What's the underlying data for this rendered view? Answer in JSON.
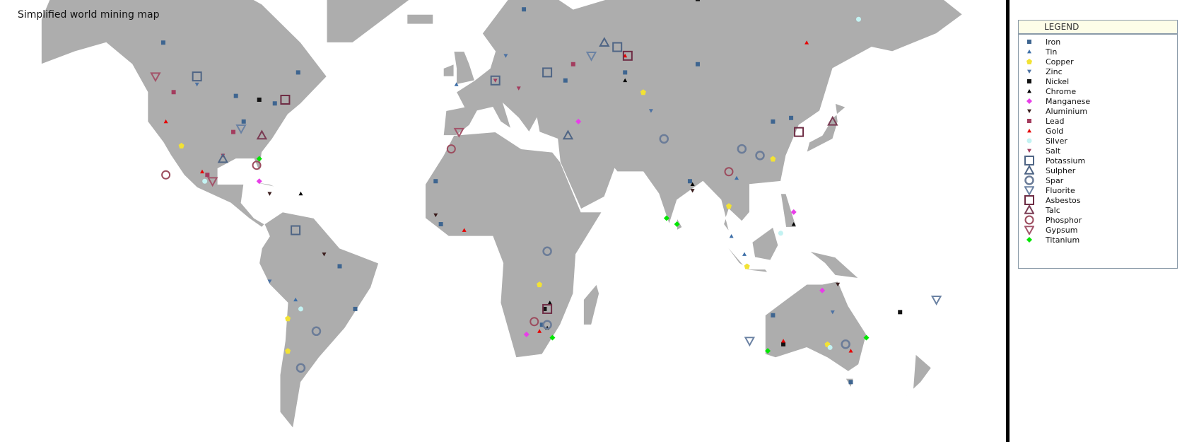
{
  "title": "Simplified world mining map",
  "legend": {
    "header": "LEGEND",
    "items": [
      {
        "label": "Iron",
        "shape": "square-small",
        "color": "#3e6590"
      },
      {
        "label": "Tin",
        "shape": "triangle-small",
        "color": "#3e6fa8"
      },
      {
        "label": "Copper",
        "shape": "pentagon",
        "color": "#f2e234"
      },
      {
        "label": "Zinc",
        "shape": "triangle-down-small",
        "color": "#4d72a3"
      },
      {
        "label": "Nickel",
        "shape": "square-small",
        "color": "#111111"
      },
      {
        "label": "Chrome",
        "shape": "triangle-small",
        "color": "#000000"
      },
      {
        "label": "Manganese",
        "shape": "diamond",
        "color": "#e83ee8"
      },
      {
        "label": "Aluminium",
        "shape": "triangle-down-small",
        "color": "#3a1c1c"
      },
      {
        "label": "Lead",
        "shape": "square-small",
        "color": "#a33c5e"
      },
      {
        "label": "Gold",
        "shape": "triangle-small",
        "color": "#e60000"
      },
      {
        "label": "Silver",
        "shape": "circle",
        "color": "#c3f2f2"
      },
      {
        "label": "Salt",
        "shape": "triangle-down-small",
        "color": "#a33c5e"
      },
      {
        "label": "Potassium",
        "shape": "square-outline",
        "color": "#4f6585"
      },
      {
        "label": "Sulpher",
        "shape": "triangle-outline",
        "color": "#4f6585"
      },
      {
        "label": "Spar",
        "shape": "circle-outline",
        "color": "#6b7c98"
      },
      {
        "label": "Fluorite",
        "shape": "triangle-down-outline",
        "color": "#6b82a3"
      },
      {
        "label": "Asbestos",
        "shape": "square-outline",
        "color": "#6e2c44"
      },
      {
        "label": "Talc",
        "shape": "triangle-outline",
        "color": "#7a3c54"
      },
      {
        "label": "Phosphor",
        "shape": "circle-outline",
        "color": "#9c4c5e"
      },
      {
        "label": "Gypsum",
        "shape": "triangle-down-outline",
        "color": "#a3546a"
      },
      {
        "label": "Titanium",
        "shape": "diamond",
        "color": "#00e600"
      }
    ]
  },
  "colors": {
    "land": "#adadad",
    "border": "#ffffff",
    "ocean": "#ffffff"
  },
  "markers": [
    {
      "type": "Iron",
      "lon": -66,
      "lat": 53
    },
    {
      "type": "Iron",
      "lon": -90,
      "lat": 47
    },
    {
      "type": "Iron",
      "lon": -118,
      "lat": 60
    },
    {
      "type": "Iron",
      "lon": -75,
      "lat": 45
    },
    {
      "type": "Iron",
      "lon": -87,
      "lat": 40
    },
    {
      "type": "Iron",
      "lon": 21,
      "lat": 67
    },
    {
      "type": "Iron",
      "lon": 37,
      "lat": 51
    },
    {
      "type": "Iron",
      "lon": 60,
      "lat": 53
    },
    {
      "type": "Iron",
      "lon": 88,
      "lat": 55
    },
    {
      "type": "Iron",
      "lon": 117,
      "lat": 40
    },
    {
      "type": "Iron",
      "lon": 124,
      "lat": 41
    },
    {
      "type": "Iron",
      "lon": 85,
      "lat": 22
    },
    {
      "type": "Iron",
      "lon": 117,
      "lat": -22
    },
    {
      "type": "Iron",
      "lon": -44,
      "lat": -20
    },
    {
      "type": "Iron",
      "lon": -50,
      "lat": -6
    },
    {
      "type": "Iron",
      "lon": 28,
      "lat": -25
    },
    {
      "type": "Iron",
      "lon": -11,
      "lat": 8
    },
    {
      "type": "Iron",
      "lon": -13,
      "lat": 22
    },
    {
      "type": "Iron",
      "lon": 147,
      "lat": -42
    },
    {
      "type": "Tin",
      "lon": -67,
      "lat": -17
    },
    {
      "type": "Tin",
      "lon": 101,
      "lat": 4
    },
    {
      "type": "Tin",
      "lon": 106,
      "lat": -2
    },
    {
      "type": "Tin",
      "lon": 103,
      "lat": 23
    },
    {
      "type": "Tin",
      "lon": -5,
      "lat": 50
    },
    {
      "type": "Copper",
      "lon": -70,
      "lat": -23
    },
    {
      "type": "Copper",
      "lon": -70,
      "lat": -33
    },
    {
      "type": "Copper",
      "lon": 27,
      "lat": -12
    },
    {
      "type": "Copper",
      "lon": -111,
      "lat": 33
    },
    {
      "type": "Copper",
      "lon": 138,
      "lat": -31
    },
    {
      "type": "Copper",
      "lon": 67,
      "lat": 48
    },
    {
      "type": "Copper",
      "lon": 117,
      "lat": 29
    },
    {
      "type": "Copper",
      "lon": 100,
      "lat": 14
    },
    {
      "type": "Copper",
      "lon": 107,
      "lat": -6
    },
    {
      "type": "Zinc",
      "lon": -105,
      "lat": 50
    },
    {
      "type": "Zinc",
      "lon": 140,
      "lat": -21
    },
    {
      "type": "Zinc",
      "lon": -77,
      "lat": -11
    },
    {
      "type": "Zinc",
      "lon": 14,
      "lat": 57
    },
    {
      "type": "Zinc",
      "lon": 70,
      "lat": 43
    },
    {
      "type": "Nickel",
      "lon": 88,
      "lat": 69
    },
    {
      "type": "Nickel",
      "lon": -81,
      "lat": 46
    },
    {
      "type": "Nickel",
      "lon": 121,
      "lat": -31
    },
    {
      "type": "Nickel",
      "lon": 166,
      "lat": -21
    },
    {
      "type": "Nickel",
      "lon": 29,
      "lat": -20
    },
    {
      "type": "Chrome",
      "lon": 30,
      "lat": -26
    },
    {
      "type": "Chrome",
      "lon": 31,
      "lat": -18
    },
    {
      "type": "Chrome",
      "lon": 60,
      "lat": 51
    },
    {
      "type": "Chrome",
      "lon": 86,
      "lat": 21
    },
    {
      "type": "Chrome",
      "lon": -65,
      "lat": 18
    },
    {
      "type": "Chrome",
      "lon": 125,
      "lat": 8
    },
    {
      "type": "Manganese",
      "lon": 22,
      "lat": -28
    },
    {
      "type": "Manganese",
      "lon": 136,
      "lat": -14
    },
    {
      "type": "Manganese",
      "lon": -81,
      "lat": 22
    },
    {
      "type": "Manganese",
      "lon": 125,
      "lat": 12
    },
    {
      "type": "Manganese",
      "lon": 42,
      "lat": 40
    },
    {
      "type": "Aluminium",
      "lon": -13,
      "lat": 11
    },
    {
      "type": "Aluminium",
      "lon": 142,
      "lat": -12
    },
    {
      "type": "Aluminium",
      "lon": -56,
      "lat": -2
    },
    {
      "type": "Aluminium",
      "lon": 86,
      "lat": 19
    },
    {
      "type": "Aluminium",
      "lon": -77,
      "lat": 18
    },
    {
      "type": "Lead",
      "lon": -91,
      "lat": 37
    },
    {
      "type": "Lead",
      "lon": -114,
      "lat": 48
    },
    {
      "type": "Lead",
      "lon": 40,
      "lat": 55
    },
    {
      "type": "Lead",
      "lon": -101,
      "lat": 24
    },
    {
      "type": "Gold",
      "lon": 27,
      "lat": -27
    },
    {
      "type": "Gold",
      "lon": 121,
      "lat": -30
    },
    {
      "type": "Gold",
      "lon": -117,
      "lat": 40
    },
    {
      "type": "Gold",
      "lon": -103,
      "lat": 25
    },
    {
      "type": "Gold",
      "lon": 60,
      "lat": 57
    },
    {
      "type": "Gold",
      "lon": 130,
      "lat": 60
    },
    {
      "type": "Gold",
      "lon": -2,
      "lat": 6
    },
    {
      "type": "Gold",
      "lon": 147,
      "lat": -33
    },
    {
      "type": "Silver",
      "lon": -102,
      "lat": 22
    },
    {
      "type": "Silver",
      "lon": -65,
      "lat": -20
    },
    {
      "type": "Silver",
      "lon": 139,
      "lat": -32
    },
    {
      "type": "Silver",
      "lon": 150,
      "lat": 65
    },
    {
      "type": "Silver",
      "lon": 120,
      "lat": 5
    },
    {
      "type": "Salt",
      "lon": -95,
      "lat": 30
    },
    {
      "type": "Salt",
      "lon": 10,
      "lat": 51
    },
    {
      "type": "Salt",
      "lon": 19,
      "lat": 49
    },
    {
      "type": "Potassium",
      "lon": -105,
      "lat": 52
    },
    {
      "type": "Potassium",
      "lon": 30,
      "lat": 53
    },
    {
      "type": "Potassium",
      "lon": 57,
      "lat": 59
    },
    {
      "type": "Potassium",
      "lon": -67,
      "lat": 6
    },
    {
      "type": "Potassium",
      "lon": 10,
      "lat": 51
    },
    {
      "type": "Sulpher",
      "lon": -95,
      "lat": 29
    },
    {
      "type": "Sulpher",
      "lon": 38,
      "lat": 36
    },
    {
      "type": "Sulpher",
      "lon": 52,
      "lat": 60
    },
    {
      "type": "Spar",
      "lon": -59,
      "lat": -27
    },
    {
      "type": "Spar",
      "lon": 105,
      "lat": 32
    },
    {
      "type": "Spar",
      "lon": 112,
      "lat": 30
    },
    {
      "type": "Spar",
      "lon": 75,
      "lat": 35
    },
    {
      "type": "Spar",
      "lon": 30,
      "lat": -1
    },
    {
      "type": "Spar",
      "lon": 30,
      "lat": -25
    },
    {
      "type": "Spar",
      "lon": -65,
      "lat": -38
    },
    {
      "type": "Spar",
      "lon": 145,
      "lat": -31
    },
    {
      "type": "Spar",
      "lon": 28,
      "lat": 70
    },
    {
      "type": "Fluorite",
      "lon": -88,
      "lat": 38
    },
    {
      "type": "Fluorite",
      "lon": 47,
      "lat": 57
    },
    {
      "type": "Fluorite",
      "lon": 108,
      "lat": -30
    },
    {
      "type": "Fluorite",
      "lon": 180,
      "lat": -17
    },
    {
      "type": "Asbestos",
      "lon": -71,
      "lat": 46
    },
    {
      "type": "Asbestos",
      "lon": 61,
      "lat": 57
    },
    {
      "type": "Asbestos",
      "lon": 30,
      "lat": -20
    },
    {
      "type": "Asbestos",
      "lon": 127,
      "lat": 37
    },
    {
      "type": "Talc",
      "lon": -80,
      "lat": 36
    },
    {
      "type": "Talc",
      "lon": 140,
      "lat": 40
    },
    {
      "type": "Phosphor",
      "lon": -82,
      "lat": 27
    },
    {
      "type": "Phosphor",
      "lon": -7,
      "lat": 32
    },
    {
      "type": "Phosphor",
      "lon": 25,
      "lat": -24
    },
    {
      "type": "Phosphor",
      "lon": -117,
      "lat": 24
    },
    {
      "type": "Phosphor",
      "lon": 100,
      "lat": 25
    },
    {
      "type": "Gypsum",
      "lon": -121,
      "lat": 52
    },
    {
      "type": "Gypsum",
      "lon": -4,
      "lat": 37
    },
    {
      "type": "Gypsum",
      "lon": -99,
      "lat": 22
    },
    {
      "type": "Titanium",
      "lon": -81,
      "lat": 29
    },
    {
      "type": "Titanium",
      "lon": 76,
      "lat": 10
    },
    {
      "type": "Titanium",
      "lon": 80,
      "lat": 8
    },
    {
      "type": "Titanium",
      "lon": 32,
      "lat": -29
    },
    {
      "type": "Titanium",
      "lon": 115,
      "lat": -33
    },
    {
      "type": "Titanium",
      "lon": 153,
      "lat": -29
    }
  ]
}
